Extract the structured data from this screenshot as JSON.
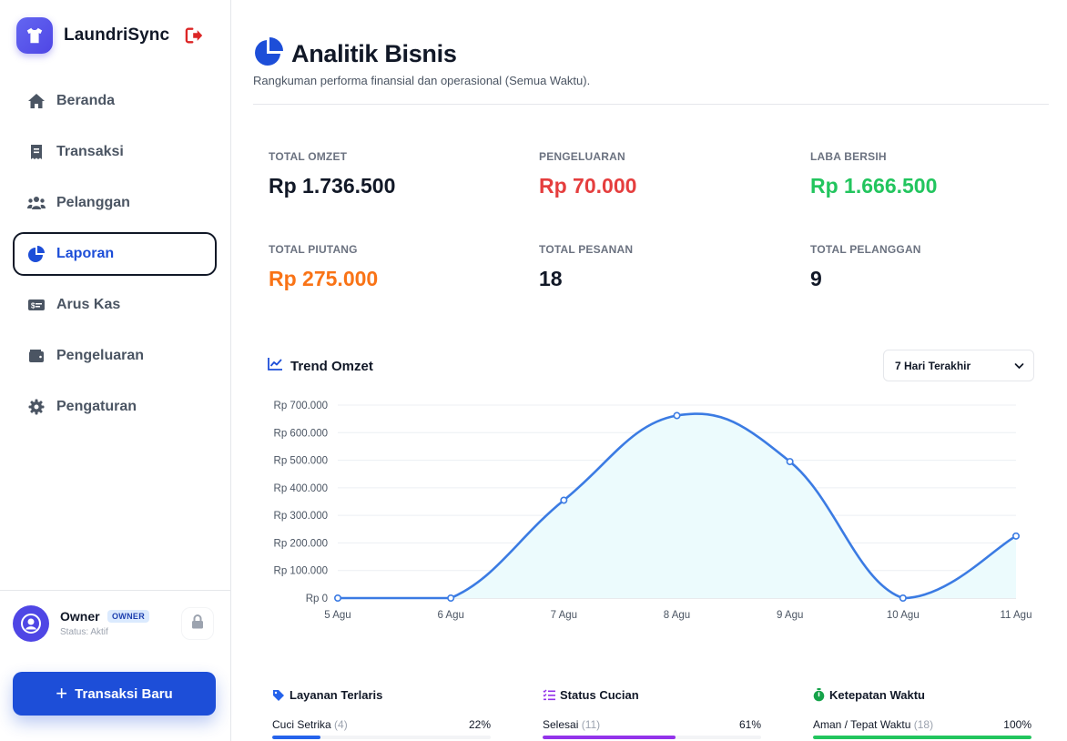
{
  "app": {
    "name": "LaundriSync"
  },
  "nav": [
    {
      "label": "Beranda",
      "icon": "home-icon",
      "active": false
    },
    {
      "label": "Transaksi",
      "icon": "receipt-icon",
      "active": false
    },
    {
      "label": "Pelanggan",
      "icon": "users-icon",
      "active": false
    },
    {
      "label": "Laporan",
      "icon": "pie-chart-icon",
      "active": true
    },
    {
      "label": "Arus Kas",
      "icon": "money-bill-icon",
      "active": false
    },
    {
      "label": "Pengeluaran",
      "icon": "wallet-icon",
      "active": false
    },
    {
      "label": "Pengaturan",
      "icon": "gear-icon",
      "active": false
    }
  ],
  "user": {
    "name": "Owner",
    "role": "OWNER",
    "status": "Status: Aktif"
  },
  "actions": {
    "new_transaction": "Transaksi Baru"
  },
  "page": {
    "title": "Analitik Bisnis",
    "subtitle": "Rangkuman performa finansial dan operasional (Semua Waktu)."
  },
  "stats": [
    {
      "label": "TOTAL OMZET",
      "value": "Rp 1.736.500",
      "color": "#111827"
    },
    {
      "label": "PENGELUARAN",
      "value": "Rp 70.000",
      "color": "#e53e3e"
    },
    {
      "label": "LABA BERSIH",
      "value": "Rp 1.666.500",
      "color": "#22c55e"
    },
    {
      "label": "TOTAL PIUTANG",
      "value": "Rp 275.000",
      "color": "#f97316"
    },
    {
      "label": "TOTAL PESANAN",
      "value": "18",
      "color": "#111827"
    },
    {
      "label": "TOTAL PELANGGAN",
      "value": "9",
      "color": "#111827"
    }
  ],
  "trend": {
    "title": "Trend Omzet",
    "range_selected": "7 Hari Terakhir"
  },
  "chart_data": {
    "type": "area",
    "title": "Trend Omzet",
    "x": [
      "5 Agu",
      "6 Agu",
      "7 Agu",
      "8 Agu",
      "9 Agu",
      "10 Agu",
      "11 Agu"
    ],
    "series": [
      {
        "values": [
          0,
          0,
          355000,
          662000,
          495000,
          0,
          225000
        ]
      }
    ],
    "ylim": [
      0,
      700000
    ],
    "yticks": [
      0,
      100000,
      200000,
      300000,
      400000,
      500000,
      600000,
      700000
    ],
    "ytick_labels": [
      "Rp 0",
      "Rp 100.000",
      "Rp 200.000",
      "Rp 300.000",
      "Rp 400.000",
      "Rp 500.000",
      "Rp 600.000",
      "Rp 700.000"
    ],
    "grid": true,
    "line_color": "#3b7be3",
    "fill_color": "#ecfbfd"
  },
  "panels": [
    {
      "title": "Layanan Terlaris",
      "icon": "tag-icon",
      "item": "Cuci Setrika",
      "count": "(4)",
      "percent": "22%",
      "fraction": 0.22,
      "color": "#2563eb"
    },
    {
      "title": "Status Cucian",
      "icon": "list-check-icon",
      "item": "Selesai",
      "count": "(11)",
      "percent": "61%",
      "fraction": 0.61,
      "color": "#9333ea"
    },
    {
      "title": "Ketepatan Waktu",
      "icon": "stopwatch-icon",
      "item": "Aman / Tepat Waktu",
      "count": "(18)",
      "percent": "100%",
      "fraction": 1.0,
      "color": "#22c55e"
    }
  ]
}
